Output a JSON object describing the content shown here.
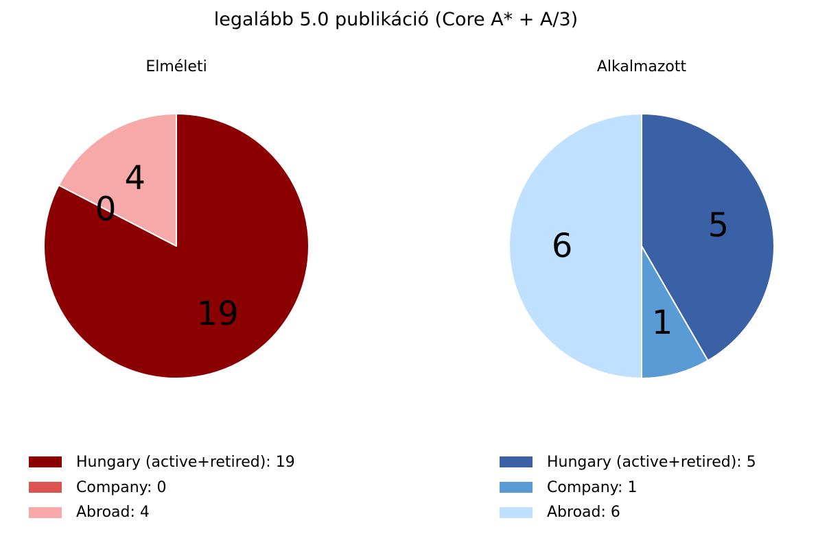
{
  "title": "legalább 5.0 publikáció (Core A* + A/3)",
  "chart_data": [
    {
      "type": "pie",
      "title": "Elméleti",
      "start": "top",
      "direction": "clockwise",
      "categories": [
        "Hungary (active+retired)",
        "Company",
        "Abroad"
      ],
      "values": [
        19,
        0,
        4
      ],
      "colors": [
        "#8b0000",
        "#dc5450",
        "#f7a8a8"
      ],
      "slice_labels": [
        "19",
        "0",
        "4"
      ],
      "legend": [
        "Hungary (active+retired): 19",
        "Company: 0",
        "Abroad: 4"
      ]
    },
    {
      "type": "pie",
      "title": "Alkalmazott",
      "start": "top",
      "direction": "clockwise",
      "categories": [
        "Hungary (active+retired)",
        "Company",
        "Abroad"
      ],
      "values": [
        5,
        1,
        6
      ],
      "colors": [
        "#3a60a6",
        "#5b9bd5",
        "#bfe0ff"
      ],
      "slice_labels": [
        "5",
        "1",
        "6"
      ],
      "legend": [
        "Hungary (active+retired): 5",
        "Company: 1",
        "Abroad: 6"
      ]
    }
  ]
}
